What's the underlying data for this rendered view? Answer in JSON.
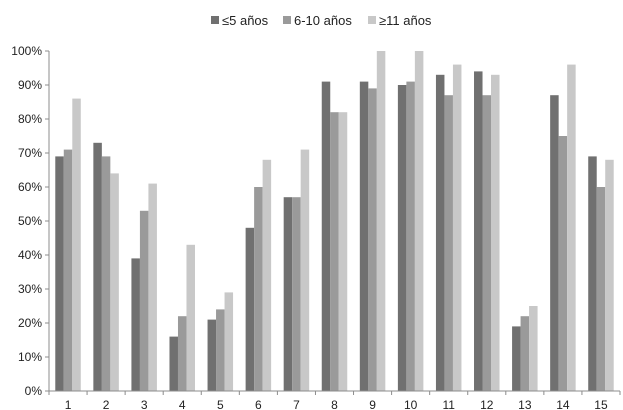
{
  "chart_data": {
    "type": "bar",
    "title": "",
    "xlabel": "",
    "ylabel": "",
    "ylim": [
      0,
      100
    ],
    "y_ticks": [
      "0%",
      "10%",
      "20%",
      "30%",
      "40%",
      "50%",
      "60%",
      "70%",
      "80%",
      "90%",
      "100%"
    ],
    "grid": false,
    "legend_position": "top-center",
    "categories": [
      "1",
      "2",
      "3",
      "4",
      "5",
      "6",
      "7",
      "8",
      "9",
      "10",
      "11",
      "12",
      "13",
      "14",
      "15"
    ],
    "series": [
      {
        "name": "≤5 años",
        "color": "#707070",
        "values": [
          69,
          73,
          39,
          16,
          21,
          48,
          57,
          91,
          91,
          90,
          93,
          94,
          19,
          87,
          69
        ]
      },
      {
        "name": "6-10 años",
        "color": "#9a9a9a",
        "values": [
          71,
          69,
          53,
          22,
          24,
          60,
          57,
          82,
          89,
          91,
          87,
          87,
          22,
          75,
          60
        ]
      },
      {
        "name": "≥11 años",
        "color": "#c8c8c8",
        "values": [
          86,
          64,
          61,
          43,
          29,
          68,
          71,
          82,
          100,
          100,
          96,
          93,
          25,
          96,
          68
        ]
      }
    ]
  }
}
